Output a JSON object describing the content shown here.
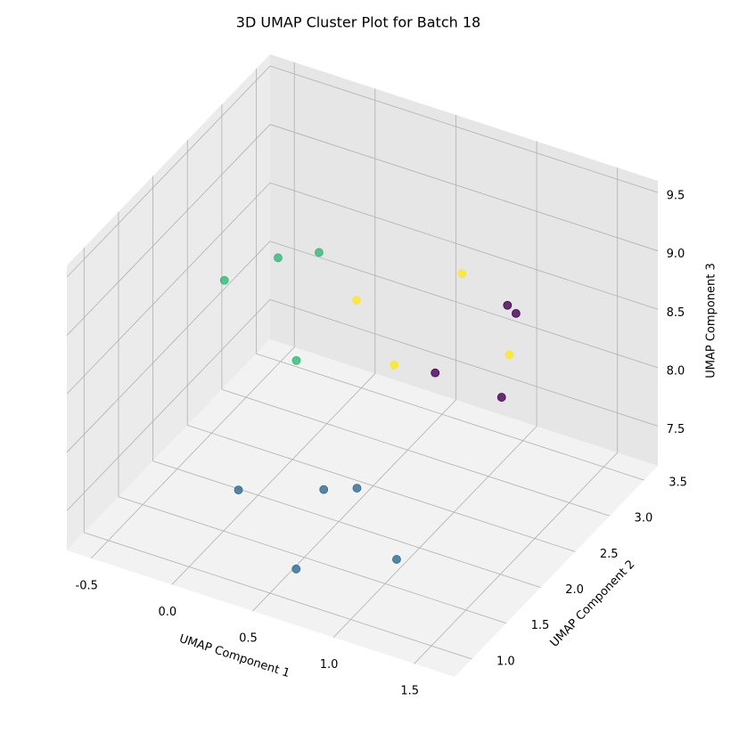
{
  "chart_data": {
    "type": "scatter3d",
    "title": "3D UMAP Cluster Plot for Batch 18",
    "xlabel": "UMAP Component 1",
    "ylabel": "UMAP Component 2",
    "zlabel": "UMAP Component 3",
    "xlim": [
      -0.65,
      1.75
    ],
    "ylim": [
      0.75,
      3.7
    ],
    "zlim": [
      7.16,
      9.6
    ],
    "xticks": [
      -0.5,
      {
        "value": 0,
        "label": "0.0"
      },
      0.5,
      {
        "value": 1,
        "label": "1.0"
      },
      1.5
    ],
    "yticks": [
      {
        "value": 1,
        "label": "1.0"
      },
      1.5,
      {
        "value": 2,
        "label": "2.0"
      },
      2.5,
      {
        "value": 3,
        "label": "3.0"
      },
      3.5
    ],
    "zticks": [
      7.5,
      {
        "value": 8,
        "label": "8.0"
      },
      8.5,
      {
        "value": 9,
        "label": "9.0"
      },
      9.5
    ],
    "grid": true,
    "series": [
      {
        "color": "#31688e",
        "x": [
          -0.01,
          0.39,
          0.54,
          0.62,
          1.05
        ],
        "y": [
          1.74,
          2.04,
          2.17,
          1.1,
          1.55
        ],
        "z": [
          7.36,
          7.36,
          7.36,
          7.36,
          7.36
        ]
      },
      {
        "color": "#35b779",
        "x": [
          -0.37,
          -0.14,
          -0.04,
          0.02
        ],
        "y": [
          2.38,
          2.62,
          2.98,
          2.51
        ],
        "z": [
          8.6,
          8.75,
          8.62,
          8.01
        ]
      },
      {
        "color": "#fde725",
        "x": [
          0.29,
          0.73,
          0.57,
          1.13
        ],
        "y": [
          2.75,
          3.25,
          2.64,
          3.0
        ],
        "z": [
          8.5,
          8.62,
          8.14,
          8.26
        ]
      },
      {
        "color": "#440154",
        "x": [
          0.96,
          1.0,
          0.73,
          1.09
        ],
        "y": [
          3.37,
          3.4,
          2.86,
          2.98
        ],
        "z": [
          8.38,
          8.31,
          8.01,
          7.89
        ]
      }
    ]
  }
}
